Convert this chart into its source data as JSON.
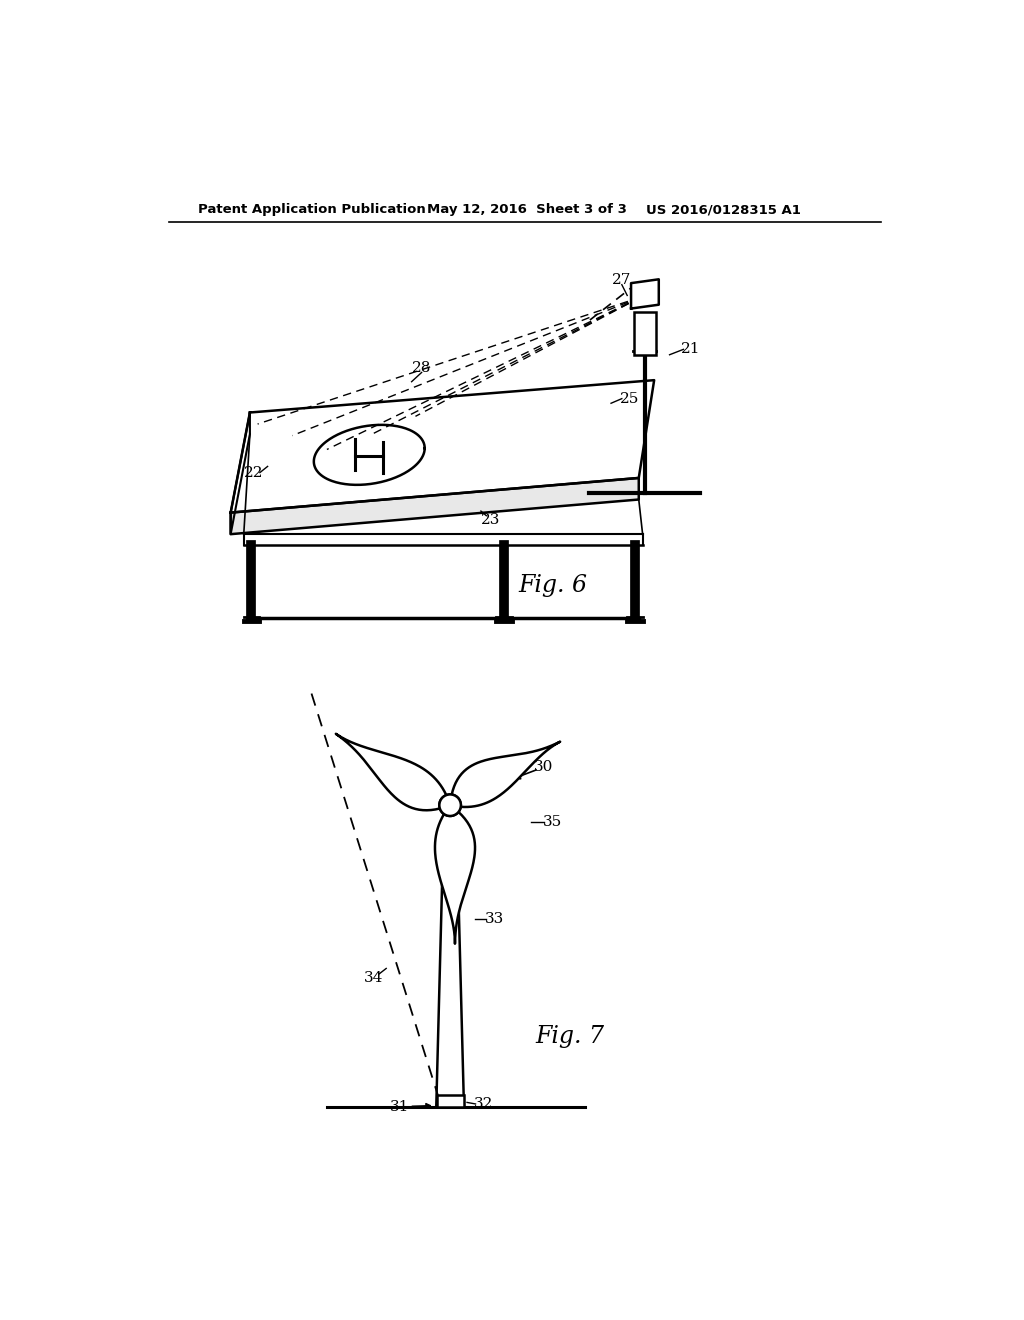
{
  "bg_color": "#ffffff",
  "header_left": "Patent Application Publication",
  "header_mid": "May 12, 2016  Sheet 3 of 3",
  "header_right": "US 2016/0128315 A1",
  "fig6_label": "Fig. 6",
  "fig7_label": "Fig. 7",
  "line_color": "#000000"
}
